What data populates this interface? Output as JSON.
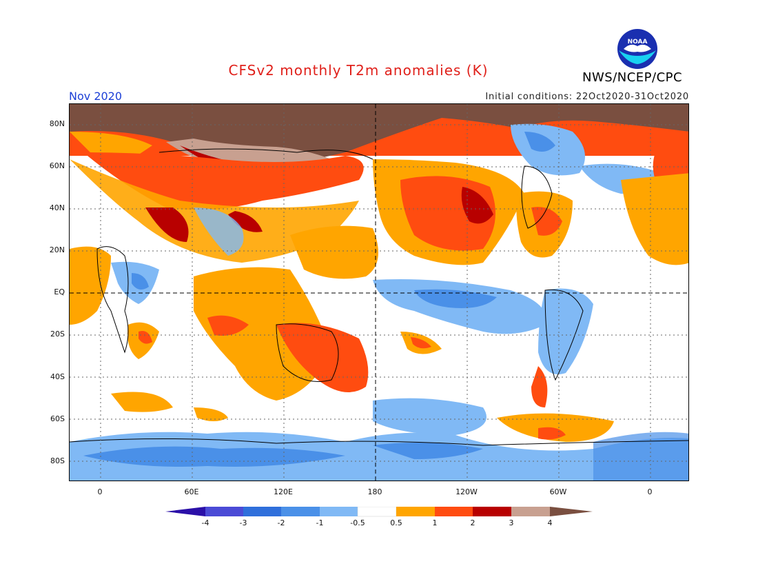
{
  "header": {
    "title": "CFSv2 monthly T2m anomalies (K)",
    "agency": "NWS/NCEP/CPC",
    "month": "Nov 2020",
    "initial_conditions": "Initial conditions: 22Oct2020-31Oct2020",
    "logo_text": "NOAA"
  },
  "axes": {
    "lat_labels": [
      "80N",
      "60N",
      "40N",
      "20N",
      "EQ",
      "20S",
      "40S",
      "60S",
      "80S"
    ],
    "lon_labels": [
      "0",
      "60E",
      "120E",
      "180",
      "120W",
      "60W",
      "0"
    ]
  },
  "colorbar": {
    "labels": [
      "-4",
      "-3",
      "-2",
      "-1",
      "-0.5",
      "0.5",
      "1",
      "2",
      "3",
      "4"
    ],
    "colors": [
      "#2b10a8",
      "#4b4bd6",
      "#2f6fdb",
      "#4a90e8",
      "#80b9f5",
      "#ffffff",
      "#ffa500",
      "#ff4c10",
      "#b80000",
      "#c8a090",
      "#7a4f40"
    ]
  }
}
